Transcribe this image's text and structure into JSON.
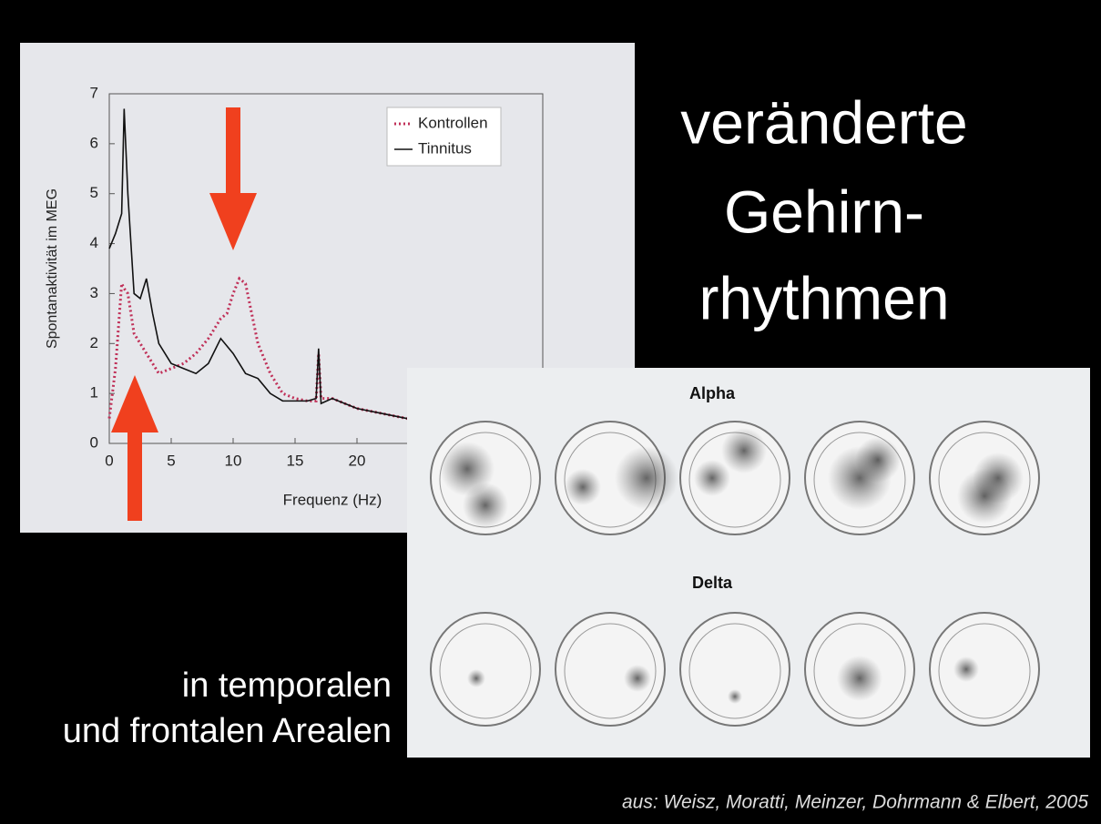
{
  "chart_data": {
    "type": "line",
    "xlabel": "Frequenz (Hz)",
    "ylabel": "Spontanaktivität im MEG",
    "x": [
      0,
      0.5,
      1,
      1.2,
      1.5,
      2,
      2.5,
      3,
      3.5,
      4,
      5,
      6,
      7,
      8,
      9,
      9.5,
      10,
      10.5,
      11,
      12,
      13,
      14,
      15,
      16,
      16.7,
      16.9,
      17.1,
      18,
      19,
      20,
      22,
      24,
      26
    ],
    "series": [
      {
        "name": "Kontrollen",
        "color": "#c03058",
        "dash": true,
        "values": [
          0.5,
          1.5,
          3.2,
          3.1,
          3.0,
          2.2,
          2.0,
          1.8,
          1.6,
          1.4,
          1.5,
          1.6,
          1.8,
          2.1,
          2.5,
          2.6,
          3.0,
          3.3,
          3.2,
          2.0,
          1.4,
          1.0,
          0.9,
          0.85,
          0.85,
          1.8,
          0.9,
          0.9,
          0.8,
          0.7,
          0.6,
          0.5,
          0.4
        ]
      },
      {
        "name": "Tinnitus",
        "color": "#111111",
        "dash": false,
        "values": [
          3.9,
          4.2,
          4.6,
          6.7,
          5.0,
          3.0,
          2.9,
          3.3,
          2.6,
          2.0,
          1.6,
          1.5,
          1.4,
          1.6,
          2.1,
          1.95,
          1.8,
          1.6,
          1.4,
          1.3,
          1.0,
          0.85,
          0.85,
          0.85,
          0.9,
          1.9,
          0.8,
          0.9,
          0.8,
          0.7,
          0.6,
          0.5,
          0.4
        ]
      }
    ],
    "xlim": [
      0,
      35
    ],
    "ylim": [
      0,
      7
    ],
    "xticks": [
      0,
      5,
      10,
      15,
      20
    ],
    "yticks": [
      0,
      1,
      2,
      3,
      4,
      5,
      6,
      7
    ],
    "legend": "upper right"
  },
  "slide": {
    "title": [
      "veränderte",
      "Gehirn-",
      "rhythmen"
    ],
    "subtitle": [
      "in temporalen",
      "und frontalen Arealen"
    ],
    "figure": {
      "top_label": "Alpha",
      "bottom_label": "Delta"
    },
    "citation": "aus: Weisz, Moratti, Meinzer, Dohrmann & Elbert, 2005"
  }
}
